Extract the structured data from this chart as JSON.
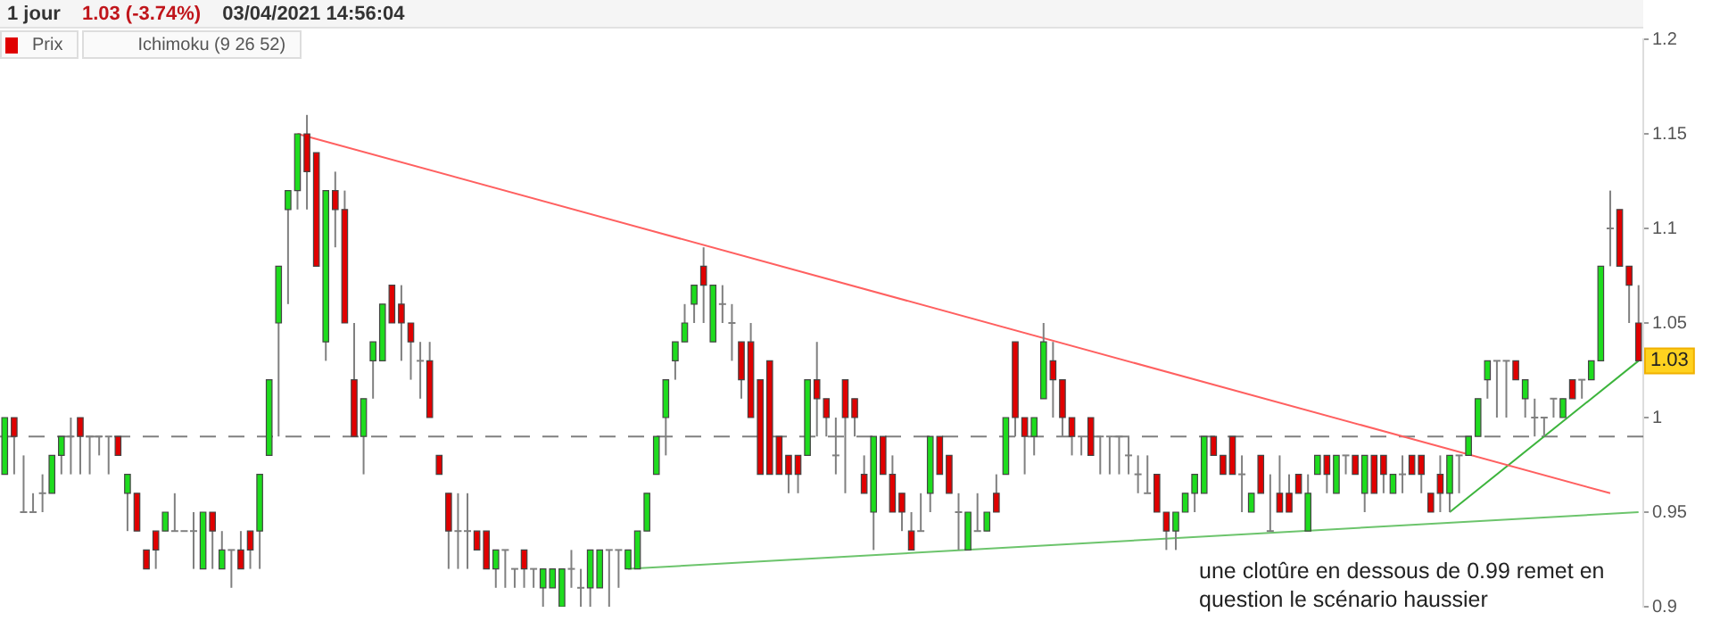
{
  "chart_data": {
    "type": "candlestick",
    "title": "1 jour",
    "categories": [
      null,
      null,
      null,
      null,
      null,
      null,
      null,
      null,
      null,
      null,
      null,
      null,
      null,
      null,
      null,
      null,
      null,
      null,
      null,
      null,
      null,
      null,
      null,
      null,
      null,
      null,
      null,
      null,
      null,
      null,
      null,
      null,
      null,
      null,
      null,
      null,
      null,
      null,
      null,
      null,
      null,
      null,
      null,
      null,
      null,
      null,
      null,
      null,
      null,
      null,
      null,
      null,
      null,
      null,
      null,
      null,
      null,
      null,
      null,
      null,
      null,
      null,
      null,
      null,
      null,
      null,
      null,
      null,
      null,
      null,
      null,
      null,
      null,
      null,
      null,
      null,
      null,
      null,
      null,
      null,
      null,
      null,
      null,
      null,
      null,
      null,
      null,
      null,
      null,
      null,
      null,
      null,
      null,
      null,
      null,
      null,
      null,
      null,
      null,
      null,
      null,
      null,
      null,
      null,
      null,
      null,
      null,
      null,
      null,
      null,
      null,
      null,
      null,
      null,
      null,
      null,
      null,
      null,
      null,
      null,
      null,
      null,
      null,
      null,
      null,
      null,
      null,
      null,
      null,
      null,
      null,
      null,
      null,
      null,
      null,
      null,
      null,
      null,
      null,
      null,
      null,
      null,
      null,
      null,
      null,
      null,
      null,
      null,
      null,
      null,
      null,
      null,
      null,
      null,
      null,
      null,
      null,
      null,
      null,
      null,
      null,
      null,
      null,
      null,
      null,
      null,
      null,
      null,
      null,
      null,
      null,
      null,
      null,
      null
    ],
    "series": [
      {
        "name": "Prix",
        "type": "candlestick",
        "color": "#e00000",
        "ohlc": [
          [
            0.97,
            1.0,
            0.97,
            1.0
          ],
          [
            1.0,
            1.0,
            0.97,
            0.99
          ],
          [
            0.95,
            0.98,
            0.95,
            0.95
          ],
          [
            0.95,
            0.96,
            0.95,
            0.95
          ],
          [
            0.96,
            0.97,
            0.95,
            0.96
          ],
          [
            0.96,
            0.98,
            0.96,
            0.98
          ],
          [
            0.98,
            0.99,
            0.97,
            0.99
          ],
          [
            0.99,
            1.0,
            0.97,
            0.99
          ],
          [
            1.0,
            1.0,
            0.97,
            0.99
          ],
          [
            0.99,
            0.99,
            0.97,
            0.99
          ],
          [
            0.99,
            0.99,
            0.98,
            0.99
          ],
          [
            0.99,
            0.99,
            0.97,
            0.99
          ],
          [
            0.99,
            0.99,
            0.98,
            0.98
          ],
          [
            0.96,
            0.97,
            0.94,
            0.97
          ],
          [
            0.96,
            0.96,
            0.94,
            0.94
          ],
          [
            0.93,
            0.93,
            0.92,
            0.92
          ],
          [
            0.94,
            0.94,
            0.92,
            0.93
          ],
          [
            0.94,
            0.95,
            0.94,
            0.95
          ],
          [
            0.94,
            0.96,
            0.94,
            0.94
          ],
          [
            0.94,
            0.94,
            0.94,
            0.94
          ],
          [
            0.94,
            0.95,
            0.92,
            0.94
          ],
          [
            0.92,
            0.95,
            0.92,
            0.95
          ],
          [
            0.95,
            0.95,
            0.92,
            0.94
          ],
          [
            0.92,
            0.94,
            0.92,
            0.93
          ],
          [
            0.93,
            0.93,
            0.91,
            0.93
          ],
          [
            0.93,
            0.94,
            0.92,
            0.92
          ],
          [
            0.94,
            0.94,
            0.92,
            0.93
          ],
          [
            0.94,
            0.97,
            0.92,
            0.97
          ],
          [
            0.98,
            1.02,
            0.98,
            1.02
          ],
          [
            1.05,
            1.08,
            0.99,
            1.08
          ],
          [
            1.11,
            1.12,
            1.06,
            1.12
          ],
          [
            1.12,
            1.15,
            1.11,
            1.15
          ],
          [
            1.15,
            1.16,
            1.11,
            1.13
          ],
          [
            1.14,
            1.14,
            1.08,
            1.08
          ],
          [
            1.04,
            1.12,
            1.03,
            1.12
          ],
          [
            1.12,
            1.13,
            1.09,
            1.11
          ],
          [
            1.11,
            1.12,
            1.05,
            1.05
          ],
          [
            1.02,
            1.05,
            0.99,
            0.99
          ],
          [
            0.99,
            1.01,
            0.97,
            1.01
          ],
          [
            1.03,
            1.04,
            1.01,
            1.04
          ],
          [
            1.03,
            1.06,
            1.03,
            1.06
          ],
          [
            1.07,
            1.07,
            1.05,
            1.05
          ],
          [
            1.06,
            1.07,
            1.03,
            1.05
          ],
          [
            1.05,
            1.05,
            1.02,
            1.04
          ],
          [
            1.03,
            1.04,
            1.01,
            1.03
          ],
          [
            1.03,
            1.04,
            1.0,
            1.0
          ],
          [
            0.98,
            0.98,
            0.97,
            0.97
          ],
          [
            0.96,
            0.96,
            0.92,
            0.94
          ],
          [
            0.94,
            0.96,
            0.92,
            0.94
          ],
          [
            0.94,
            0.96,
            0.92,
            0.94
          ],
          [
            0.94,
            0.94,
            0.93,
            0.93
          ],
          [
            0.94,
            0.94,
            0.92,
            0.92
          ],
          [
            0.92,
            0.93,
            0.91,
            0.93
          ],
          [
            0.93,
            0.93,
            0.91,
            0.93
          ],
          [
            0.92,
            0.92,
            0.91,
            0.92
          ],
          [
            0.93,
            0.93,
            0.91,
            0.92
          ],
          [
            0.92,
            0.92,
            0.91,
            0.92
          ],
          [
            0.91,
            0.92,
            0.9,
            0.92
          ],
          [
            0.91,
            0.92,
            0.91,
            0.92
          ],
          [
            0.9,
            0.92,
            0.9,
            0.92
          ],
          [
            0.92,
            0.93,
            0.91,
            0.92
          ],
          [
            0.91,
            0.92,
            0.9,
            0.91
          ],
          [
            0.91,
            0.93,
            0.9,
            0.93
          ],
          [
            0.91,
            0.93,
            0.91,
            0.93
          ],
          [
            0.93,
            0.93,
            0.9,
            0.93
          ],
          [
            0.93,
            0.93,
            0.91,
            0.93
          ],
          [
            0.92,
            0.93,
            0.92,
            0.93
          ],
          [
            0.92,
            0.94,
            0.92,
            0.94
          ],
          [
            0.94,
            0.96,
            0.94,
            0.96
          ],
          [
            0.97,
            0.99,
            0.97,
            0.99
          ],
          [
            1.0,
            1.02,
            0.98,
            1.02
          ],
          [
            1.03,
            1.04,
            1.02,
            1.04
          ],
          [
            1.04,
            1.06,
            1.04,
            1.05
          ],
          [
            1.06,
            1.07,
            1.05,
            1.07
          ],
          [
            1.08,
            1.09,
            1.05,
            1.07
          ],
          [
            1.04,
            1.07,
            1.04,
            1.07
          ],
          [
            1.06,
            1.07,
            1.05,
            1.06
          ],
          [
            1.05,
            1.06,
            1.03,
            1.05
          ],
          [
            1.04,
            1.04,
            1.01,
            1.02
          ],
          [
            1.04,
            1.05,
            1.0,
            1.0
          ],
          [
            1.02,
            1.02,
            0.97,
            0.97
          ],
          [
            1.03,
            1.03,
            0.97,
            0.97
          ],
          [
            0.99,
            0.99,
            0.97,
            0.97
          ],
          [
            0.98,
            0.98,
            0.96,
            0.97
          ],
          [
            0.98,
            0.98,
            0.96,
            0.97
          ],
          [
            0.98,
            1.02,
            0.98,
            1.02
          ],
          [
            1.02,
            1.04,
            0.99,
            1.01
          ],
          [
            1.01,
            1.01,
            0.99,
            1.0
          ],
          [
            0.98,
            1.0,
            0.97,
            0.98
          ],
          [
            1.02,
            1.02,
            0.96,
            1.0
          ],
          [
            1.01,
            1.01,
            0.99,
            1.0
          ],
          [
            0.97,
            0.98,
            0.96,
            0.96
          ],
          [
            0.95,
            0.99,
            0.93,
            0.99
          ],
          [
            0.99,
            0.99,
            0.97,
            0.97
          ],
          [
            0.97,
            0.98,
            0.95,
            0.95
          ],
          [
            0.96,
            0.96,
            0.94,
            0.95
          ],
          [
            0.94,
            0.95,
            0.93,
            0.93
          ],
          [
            0.94,
            0.96,
            0.94,
            0.94
          ],
          [
            0.96,
            0.99,
            0.95,
            0.99
          ],
          [
            0.99,
            0.99,
            0.97,
            0.97
          ],
          [
            0.98,
            0.98,
            0.96,
            0.96
          ],
          [
            0.95,
            0.96,
            0.93,
            0.95
          ],
          [
            0.93,
            0.95,
            0.93,
            0.95
          ],
          [
            0.94,
            0.96,
            0.94,
            0.94
          ],
          [
            0.94,
            0.95,
            0.94,
            0.95
          ],
          [
            0.96,
            0.97,
            0.95,
            0.95
          ],
          [
            0.97,
            1.0,
            0.97,
            1.0
          ],
          [
            1.04,
            1.04,
            0.99,
            1.0
          ],
          [
            1.0,
            1.0,
            0.97,
            0.99
          ],
          [
            0.99,
            1.0,
            0.98,
            1.0
          ],
          [
            1.01,
            1.05,
            1.01,
            1.04
          ],
          [
            1.03,
            1.04,
            1.0,
            1.02
          ],
          [
            1.02,
            1.02,
            0.99,
            1.0
          ],
          [
            1.0,
            1.0,
            0.98,
            0.99
          ],
          [
            0.99,
            0.99,
            0.98,
            0.99
          ],
          [
            1.0,
            1.0,
            0.98,
            0.98
          ],
          [
            0.99,
            0.99,
            0.97,
            0.99
          ],
          [
            0.99,
            0.99,
            0.97,
            0.99
          ],
          [
            0.99,
            0.99,
            0.97,
            0.99
          ],
          [
            0.98,
            0.99,
            0.97,
            0.98
          ],
          [
            0.97,
            0.98,
            0.96,
            0.97
          ],
          [
            0.96,
            0.98,
            0.96,
            0.96
          ],
          [
            0.97,
            0.97,
            0.95,
            0.95
          ],
          [
            0.95,
            0.95,
            0.93,
            0.94
          ],
          [
            0.94,
            0.95,
            0.93,
            0.95
          ],
          [
            0.95,
            0.96,
            0.95,
            0.96
          ],
          [
            0.96,
            0.97,
            0.95,
            0.97
          ],
          [
            0.96,
            0.99,
            0.96,
            0.99
          ],
          [
            0.99,
            0.99,
            0.98,
            0.98
          ],
          [
            0.98,
            0.98,
            0.97,
            0.97
          ],
          [
            0.99,
            0.99,
            0.97,
            0.97
          ],
          [
            0.97,
            0.98,
            0.95,
            0.97
          ],
          [
            0.95,
            0.96,
            0.95,
            0.96
          ],
          [
            0.98,
            0.98,
            0.96,
            0.96
          ],
          [
            0.94,
            0.97,
            0.94,
            0.94
          ],
          [
            0.96,
            0.98,
            0.95,
            0.95
          ],
          [
            0.96,
            0.97,
            0.95,
            0.95
          ],
          [
            0.97,
            0.97,
            0.96,
            0.96
          ],
          [
            0.94,
            0.97,
            0.94,
            0.96
          ],
          [
            0.97,
            0.98,
            0.97,
            0.98
          ],
          [
            0.98,
            0.98,
            0.96,
            0.97
          ],
          [
            0.96,
            0.98,
            0.96,
            0.98
          ],
          [
            0.98,
            0.98,
            0.97,
            0.98
          ],
          [
            0.98,
            0.98,
            0.97,
            0.97
          ],
          [
            0.96,
            0.98,
            0.95,
            0.98
          ],
          [
            0.98,
            0.98,
            0.96,
            0.96
          ],
          [
            0.98,
            0.98,
            0.96,
            0.97
          ],
          [
            0.96,
            0.97,
            0.96,
            0.97
          ],
          [
            0.97,
            0.98,
            0.96,
            0.97
          ],
          [
            0.98,
            0.98,
            0.97,
            0.97
          ],
          [
            0.98,
            0.98,
            0.96,
            0.97
          ],
          [
            0.96,
            0.96,
            0.95,
            0.95
          ],
          [
            0.97,
            0.98,
            0.95,
            0.96
          ],
          [
            0.96,
            0.98,
            0.95,
            0.98
          ],
          [
            0.98,
            0.98,
            0.96,
            0.98
          ],
          [
            0.98,
            0.99,
            0.98,
            0.99
          ],
          [
            0.99,
            1.01,
            0.99,
            1.01
          ],
          [
            1.02,
            1.03,
            1.01,
            1.03
          ],
          [
            1.03,
            1.03,
            1.0,
            1.03
          ],
          [
            1.03,
            1.03,
            1.0,
            1.03
          ],
          [
            1.03,
            1.03,
            1.02,
            1.02
          ],
          [
            1.01,
            1.02,
            1.0,
            1.02
          ],
          [
            1.0,
            1.01,
            0.99,
            1.0
          ],
          [
            1.0,
            1.0,
            0.99,
            1.0
          ],
          [
            1.01,
            1.01,
            1.0,
            1.01
          ],
          [
            1.0,
            1.01,
            1.0,
            1.01
          ],
          [
            1.02,
            1.02,
            1.01,
            1.01
          ],
          [
            1.02,
            1.02,
            1.01,
            1.02
          ],
          [
            1.02,
            1.03,
            1.02,
            1.03
          ],
          [
            1.03,
            1.08,
            1.03,
            1.08
          ],
          [
            1.1,
            1.12,
            1.08,
            1.1
          ],
          [
            1.11,
            1.11,
            1.08,
            1.08
          ],
          [
            1.08,
            1.08,
            1.05,
            1.07
          ],
          [
            1.05,
            1.07,
            1.03,
            1.03
          ]
        ],
        "colors": [
          "#1edc1e",
          "#e00000",
          "#808080",
          "#808080",
          "#808080",
          "#1edc1e",
          "#1edc1e",
          "#808080",
          "#e00000",
          "#808080",
          "#808080",
          "#808080",
          "#e00000",
          "#1edc1e",
          "#e00000",
          "#e00000",
          "#e00000",
          "#1edc1e",
          "#808080",
          "#808080",
          "#808080",
          "#1edc1e",
          "#e00000",
          "#1edc1e",
          "#808080",
          "#e00000",
          "#e00000",
          "#1edc1e",
          "#1edc1e",
          "#1edc1e",
          "#1edc1e",
          "#1edc1e",
          "#e00000",
          "#e00000",
          "#1edc1e",
          "#e00000",
          "#e00000",
          "#e00000",
          "#1edc1e",
          "#1edc1e",
          "#1edc1e",
          "#e00000",
          "#e00000",
          "#e00000",
          "#808080",
          "#e00000",
          "#e00000",
          "#e00000",
          "#808080",
          "#808080",
          "#e00000",
          "#e00000",
          "#1edc1e",
          "#808080",
          "#808080",
          "#e00000",
          "#808080",
          "#1edc1e",
          "#1edc1e",
          "#1edc1e",
          "#808080",
          "#808080",
          "#1edc1e",
          "#1edc1e",
          "#808080",
          "#808080",
          "#1edc1e",
          "#1edc1e",
          "#1edc1e",
          "#1edc1e",
          "#1edc1e",
          "#1edc1e",
          "#1edc1e",
          "#1edc1e",
          "#e00000",
          "#1edc1e",
          "#808080",
          "#808080",
          "#e00000",
          "#e00000",
          "#e00000",
          "#e00000",
          "#e00000",
          "#e00000",
          "#e00000",
          "#1edc1e",
          "#e00000",
          "#e00000",
          "#808080",
          "#e00000",
          "#e00000",
          "#e00000",
          "#1edc1e",
          "#e00000",
          "#e00000",
          "#e00000",
          "#e00000",
          "#808080",
          "#1edc1e",
          "#e00000",
          "#e00000",
          "#808080",
          "#1edc1e",
          "#808080",
          "#1edc1e",
          "#e00000",
          "#1edc1e",
          "#e00000",
          "#e00000",
          "#1edc1e",
          "#1edc1e",
          "#e00000",
          "#e00000",
          "#e00000",
          "#808080",
          "#e00000",
          "#808080",
          "#808080",
          "#808080",
          "#808080",
          "#808080",
          "#808080",
          "#e00000",
          "#e00000",
          "#1edc1e",
          "#1edc1e",
          "#1edc1e",
          "#1edc1e",
          "#e00000",
          "#e00000",
          "#e00000",
          "#808080",
          "#1edc1e",
          "#e00000",
          "#808080",
          "#e00000",
          "#e00000",
          "#e00000",
          "#1edc1e",
          "#1edc1e",
          "#e00000",
          "#1edc1e",
          "#808080",
          "#e00000",
          "#1edc1e",
          "#e00000",
          "#e00000",
          "#1edc1e",
          "#808080",
          "#e00000",
          "#e00000",
          "#e00000",
          "#e00000",
          "#1edc1e",
          "#808080",
          "#1edc1e",
          "#1edc1e",
          "#1edc1e",
          "#808080",
          "#808080",
          "#e00000",
          "#1edc1e",
          "#808080",
          "#808080",
          "#808080",
          "#1edc1e",
          "#e00000",
          "#808080",
          "#1edc1e",
          "#1edc1e",
          "#808080",
          "#e00000",
          "#e00000",
          "#e00000"
        ]
      },
      {
        "type": "line",
        "color": "#ff6060",
        "values": [
          null,
          null,
          null,
          null,
          null,
          null,
          null,
          null,
          null,
          null,
          null,
          null,
          null,
          null,
          null,
          null,
          null,
          null,
          null,
          null,
          null,
          null,
          null,
          null,
          null,
          null,
          null,
          null,
          null,
          null,
          null,
          1.15,
          null,
          null,
          null,
          null,
          null,
          null,
          null,
          null,
          null,
          null,
          null,
          null,
          null,
          null,
          null,
          null,
          null,
          null,
          null,
          null,
          null,
          null,
          null,
          null,
          null,
          null,
          null,
          null,
          null,
          null,
          null,
          null,
          null,
          null,
          null,
          null,
          null,
          null,
          null,
          null,
          null,
          null,
          null,
          null,
          null,
          null,
          null,
          null,
          null,
          null,
          null,
          null,
          null,
          null,
          null,
          null,
          null,
          null,
          null,
          null,
          null,
          null,
          null,
          null,
          null,
          null,
          null,
          null,
          null,
          null,
          null,
          null,
          null,
          null,
          null,
          null,
          null,
          null,
          null,
          null,
          null,
          null,
          null,
          null,
          null,
          null,
          null,
          null,
          null,
          null,
          null,
          null,
          null,
          null,
          null,
          null,
          null,
          null,
          null,
          null,
          null,
          null,
          null,
          null,
          null,
          null,
          null,
          null,
          null,
          null,
          null,
          null,
          null,
          null,
          null,
          null,
          null,
          null,
          null,
          null,
          null,
          null,
          null,
          null,
          null,
          null,
          null,
          null,
          null,
          null,
          null,
          null,
          null,
          null,
          null,
          null,
          null,
          null,
          0.96,
          null,
          null,
          null
        ]
      },
      {
        "type": "line",
        "color": "#6cc46c",
        "values": [
          null,
          null,
          null,
          null,
          null,
          null,
          null,
          null,
          null,
          null,
          null,
          null,
          null,
          null,
          null,
          null,
          null,
          null,
          null,
          null,
          null,
          null,
          null,
          null,
          null,
          null,
          null,
          null,
          null,
          null,
          null,
          null,
          null,
          null,
          null,
          null,
          null,
          null,
          null,
          null,
          null,
          null,
          null,
          null,
          null,
          null,
          null,
          null,
          null,
          null,
          null,
          null,
          null,
          null,
          null,
          null,
          null,
          null,
          null,
          null,
          null,
          null,
          null,
          null,
          null,
          null,
          0.92,
          null,
          null,
          null,
          null,
          null,
          null,
          null,
          null,
          null,
          null,
          null,
          null,
          null,
          null,
          null,
          null,
          null,
          null,
          null,
          null,
          null,
          null,
          null,
          null,
          null,
          null,
          null,
          null,
          null,
          null,
          null,
          null,
          null,
          null,
          null,
          null,
          null,
          null,
          null,
          null,
          null,
          null,
          null,
          null,
          null,
          null,
          null,
          null,
          null,
          null,
          null,
          null,
          null,
          null,
          null,
          null,
          null,
          null,
          null,
          null,
          null,
          null,
          null,
          null,
          null,
          null,
          null,
          null,
          null,
          null,
          null,
          null,
          null,
          null,
          null,
          null,
          null,
          null,
          null,
          null,
          null,
          null,
          null,
          null,
          null,
          null,
          null,
          null,
          null,
          null,
          null,
          null,
          null,
          null,
          null,
          null,
          null,
          null,
          null,
          null,
          null,
          null,
          null,
          null,
          null,
          null,
          0.95
        ]
      },
      {
        "type": "line",
        "color": "#3cb43c",
        "values": [
          null,
          null,
          null,
          null,
          null,
          null,
          null,
          null,
          null,
          null,
          null,
          null,
          null,
          null,
          null,
          null,
          null,
          null,
          null,
          null,
          null,
          null,
          null,
          null,
          null,
          null,
          null,
          null,
          null,
          null,
          null,
          null,
          null,
          null,
          null,
          null,
          null,
          null,
          null,
          null,
          null,
          null,
          null,
          null,
          null,
          null,
          null,
          null,
          null,
          null,
          null,
          null,
          null,
          null,
          null,
          null,
          null,
          null,
          null,
          null,
          null,
          null,
          null,
          null,
          null,
          null,
          null,
          null,
          null,
          null,
          null,
          null,
          null,
          null,
          null,
          null,
          null,
          null,
          null,
          null,
          null,
          null,
          null,
          null,
          null,
          null,
          null,
          null,
          null,
          null,
          null,
          null,
          null,
          null,
          null,
          null,
          null,
          null,
          null,
          null,
          null,
          null,
          null,
          null,
          null,
          null,
          null,
          null,
          null,
          null,
          null,
          null,
          null,
          null,
          null,
          null,
          null,
          null,
          null,
          null,
          null,
          null,
          null,
          null,
          null,
          null,
          null,
          null,
          null,
          null,
          null,
          null,
          null,
          null,
          null,
          null,
          null,
          null,
          null,
          null,
          null,
          null,
          null,
          null,
          null,
          null,
          null,
          null,
          null,
          null,
          null,
          null,
          null,
          0.95,
          null,
          null,
          null,
          null,
          null,
          null,
          null,
          null,
          null,
          null,
          null,
          null,
          null,
          null,
          null,
          null,
          null,
          null,
          null,
          1.03
        ]
      }
    ],
    "ylim": [
      0.9,
      1.2
    ],
    "yticks": [
      0.9,
      0.95,
      1,
      1.05,
      1.1,
      1.15,
      1.2
    ],
    "grid": false,
    "legend": "top left",
    "tick_labels": "y",
    "ref_lines": [
      {
        "axis": "y",
        "value": 0.99,
        "color": "#808080",
        "line_style": "dashed"
      }
    ],
    "annotations": [
      "1.03 (-3.74%)",
      "03/04/2021 14:56:04",
      "Ichimoku (9 26 52)",
      "une clotûre en dessous de 0.99 remet en question le scénario haussier",
      {
        "text": "1.03",
        "y": 1.03
      }
    ]
  }
}
